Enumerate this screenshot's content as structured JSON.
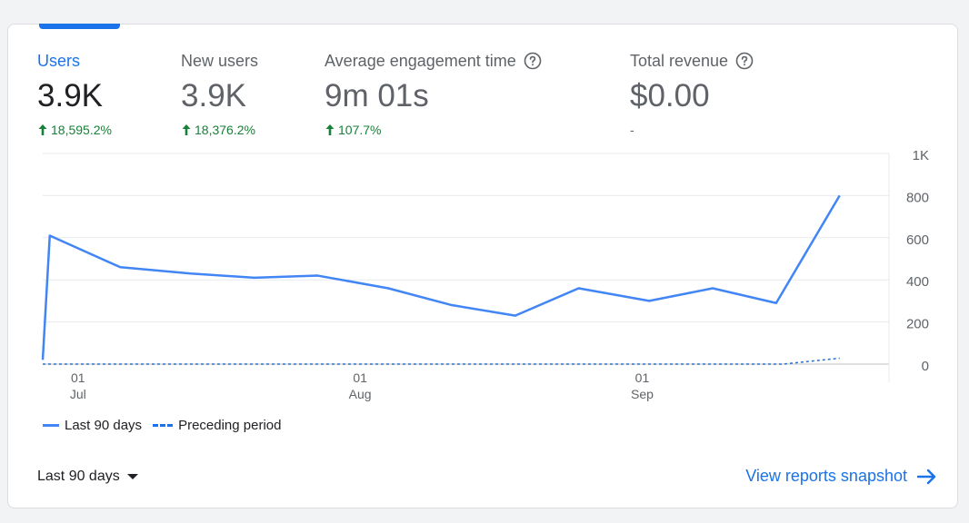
{
  "metrics": [
    {
      "label": "Users",
      "value": "3.9K",
      "change": "18,595.2%",
      "trend": "up",
      "active": true,
      "help": false
    },
    {
      "label": "New users",
      "value": "3.9K",
      "change": "18,376.2%",
      "trend": "up",
      "active": false,
      "help": false
    },
    {
      "label": "Average engagement time",
      "value": "9m 01s",
      "change": "107.7%",
      "trend": "up",
      "active": false,
      "help": true
    },
    {
      "label": "Total revenue",
      "value": "$0.00",
      "change": "-",
      "trend": "none",
      "active": false,
      "help": true
    }
  ],
  "chart_data": {
    "type": "line",
    "ylim": [
      0,
      1000
    ],
    "yticks": [
      "0",
      "200",
      "400",
      "600",
      "800",
      "1K"
    ],
    "ytick_values": [
      0,
      200,
      400,
      600,
      800,
      1000
    ],
    "xtick_days": [
      "01",
      "01",
      "01"
    ],
    "xtick_months": [
      "Jul",
      "Aug",
      "Sep"
    ],
    "xtick_positions_day": [
      5,
      45,
      85
    ],
    "series": [
      {
        "name": "Last 90 days",
        "style": "solid",
        "color": "#4285f4",
        "x": [
          0,
          1,
          11,
          21,
          30,
          39,
          49,
          58,
          67,
          76,
          86,
          95,
          104,
          113
        ],
        "y": [
          20,
          610,
          460,
          430,
          410,
          420,
          360,
          280,
          230,
          360,
          300,
          360,
          290,
          800
        ]
      },
      {
        "name": "Preceding period",
        "style": "dashed",
        "color": "#1a73e8",
        "x": [
          0,
          30,
          60,
          90,
          105,
          113
        ],
        "y": [
          0,
          0,
          0,
          0,
          0,
          28
        ]
      }
    ]
  },
  "footer": {
    "range_label": "Last 90 days",
    "view_link": "View reports snapshot"
  }
}
